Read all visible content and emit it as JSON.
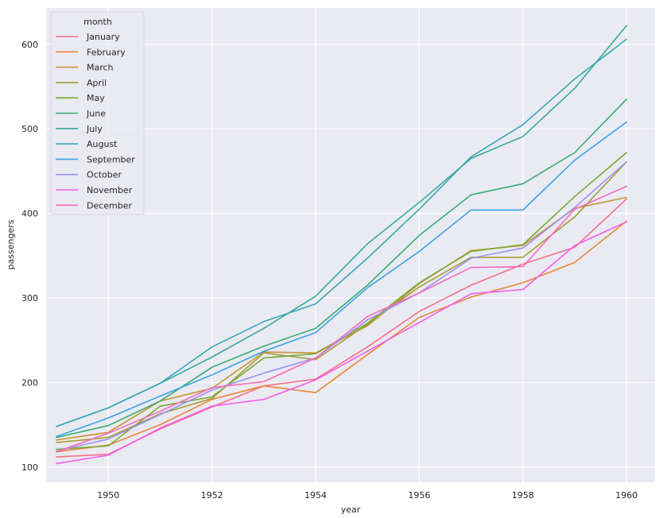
{
  "chart_data": {
    "type": "line",
    "xlabel": "year",
    "ylabel": "passengers",
    "xlim": [
      1948.8,
      1960.55
    ],
    "ylim": [
      82,
      643
    ],
    "xticks": [
      1950,
      1952,
      1954,
      1956,
      1958,
      1960
    ],
    "yticks": [
      100,
      200,
      300,
      400,
      500,
      600
    ],
    "grid": true,
    "legend_title": "month",
    "legend_position": "top-left",
    "x": [
      1949,
      1950,
      1951,
      1952,
      1953,
      1954,
      1955,
      1956,
      1957,
      1958,
      1959,
      1960
    ],
    "series": [
      {
        "name": "January",
        "color": "#f77189",
        "values": [
          112,
          115,
          145,
          171,
          196,
          204,
          242,
          284,
          315,
          340,
          360,
          417
        ]
      },
      {
        "name": "February",
        "color": "#e7873a",
        "values": [
          118,
          126,
          150,
          180,
          196,
          188,
          233,
          277,
          301,
          318,
          342,
          391
        ]
      },
      {
        "name": "March",
        "color": "#c69432",
        "values": [
          132,
          141,
          178,
          193,
          236,
          235,
          267,
          317,
          356,
          362,
          406,
          419
        ]
      },
      {
        "name": "April",
        "color": "#a59c31",
        "values": [
          129,
          135,
          163,
          181,
          235,
          227,
          269,
          313,
          348,
          348,
          396,
          461
        ]
      },
      {
        "name": "May",
        "color": "#7aaa33",
        "values": [
          121,
          125,
          172,
          183,
          229,
          234,
          270,
          318,
          355,
          363,
          420,
          472
        ]
      },
      {
        "name": "June",
        "color": "#35ae71",
        "values": [
          135,
          149,
          178,
          218,
          243,
          264,
          315,
          374,
          422,
          435,
          472,
          535
        ]
      },
      {
        "name": "July",
        "color": "#36ab9b",
        "values": [
          148,
          170,
          199,
          230,
          264,
          302,
          364,
          413,
          465,
          491,
          548,
          622
        ]
      },
      {
        "name": "August",
        "color": "#38a8b6",
        "values": [
          148,
          170,
          199,
          242,
          272,
          293,
          347,
          405,
          467,
          505,
          559,
          606
        ]
      },
      {
        "name": "September",
        "color": "#3ba3ec",
        "values": [
          136,
          158,
          184,
          209,
          237,
          259,
          312,
          355,
          404,
          404,
          463,
          508
        ]
      },
      {
        "name": "October",
        "color": "#9d91f4",
        "values": [
          119,
          133,
          162,
          191,
          211,
          229,
          274,
          306,
          347,
          359,
          407,
          461
        ]
      },
      {
        "name": "November",
        "color": "#f45deb",
        "values": [
          104,
          114,
          146,
          172,
          180,
          203,
          237,
          271,
          305,
          310,
          362,
          390
        ]
      },
      {
        "name": "December",
        "color": "#f66bbd",
        "values": [
          118,
          140,
          166,
          194,
          201,
          229,
          278,
          306,
          336,
          337,
          405,
          432
        ]
      }
    ]
  }
}
